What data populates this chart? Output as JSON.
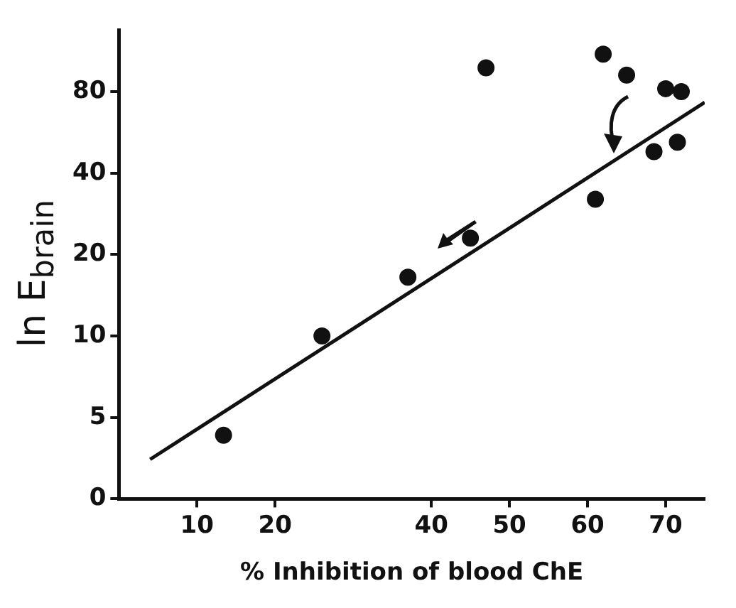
{
  "chart_data": {
    "type": "scatter",
    "xlabel": "% Inhibition of blood ChE",
    "ylabel": "ln E$_{brain}$",
    "series": [
      {
        "color": "#111111",
        "marker": "circle",
        "x": [
          13.4,
          26,
          37,
          45,
          47,
          61,
          62,
          65,
          68.5,
          70,
          71.5,
          72
        ],
        "values": [
          4.3,
          10,
          16.5,
          23,
          98,
          32,
          110,
          92,
          48,
          82,
          52,
          80
        ]
      },
      {
        "type": "line",
        "color": "#111111",
        "marker": "none",
        "x": [
          4,
          75
        ],
        "values": [
          3.5,
          73
        ]
      }
    ],
    "xlim": [
      0,
      75
    ],
    "xticks": [
      10,
      20,
      40,
      50,
      60,
      70
    ],
    "ylim": [
      0,
      135
    ],
    "yticks": [
      0,
      5,
      10,
      20,
      40,
      80
    ],
    "log": "y",
    "grid": false,
    "legend": false
  }
}
